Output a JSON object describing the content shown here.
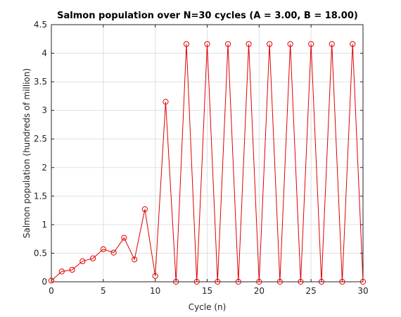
{
  "chart_data": {
    "type": "line",
    "title": "Salmon population over N=30 cycles (A = 3.00, B = 18.00)",
    "xlabel": "Cycle (n)",
    "ylabel": "Salmon population (hundreds of million)",
    "xlim": [
      0,
      30
    ],
    "ylim": [
      0,
      4.5
    ],
    "xticks": [
      0,
      5,
      10,
      15,
      20,
      25,
      30
    ],
    "yticks": [
      0,
      0.5,
      1,
      1.5,
      2,
      2.5,
      3,
      3.5,
      4,
      4.5
    ],
    "xtick_labels": [
      "0",
      "5",
      "10",
      "15",
      "20",
      "25",
      "30"
    ],
    "ytick_labels": [
      "0",
      "0.5",
      "1",
      "1.5",
      "2",
      "2.5",
      "3",
      "3.5",
      "4",
      "4.5"
    ],
    "grid": true,
    "marker": "circle",
    "color": "#e00000",
    "series": [
      {
        "x": [
          0,
          1,
          2,
          3,
          4,
          5,
          6,
          7,
          8,
          9,
          10,
          11,
          12,
          13,
          14,
          15,
          16,
          17,
          18,
          19,
          20,
          21,
          22,
          23,
          24,
          25,
          26,
          27,
          28,
          29,
          30
        ],
        "values": [
          0.02,
          0.18,
          0.21,
          0.36,
          0.41,
          0.57,
          0.51,
          0.77,
          0.39,
          1.27,
          0.1,
          3.15,
          0.0,
          4.16,
          0.0,
          4.16,
          0.0,
          4.16,
          0.0,
          4.16,
          0.0,
          4.16,
          0.0,
          4.16,
          0.0,
          4.16,
          0.0,
          4.16,
          0.0,
          4.16,
          0.0
        ]
      }
    ]
  }
}
